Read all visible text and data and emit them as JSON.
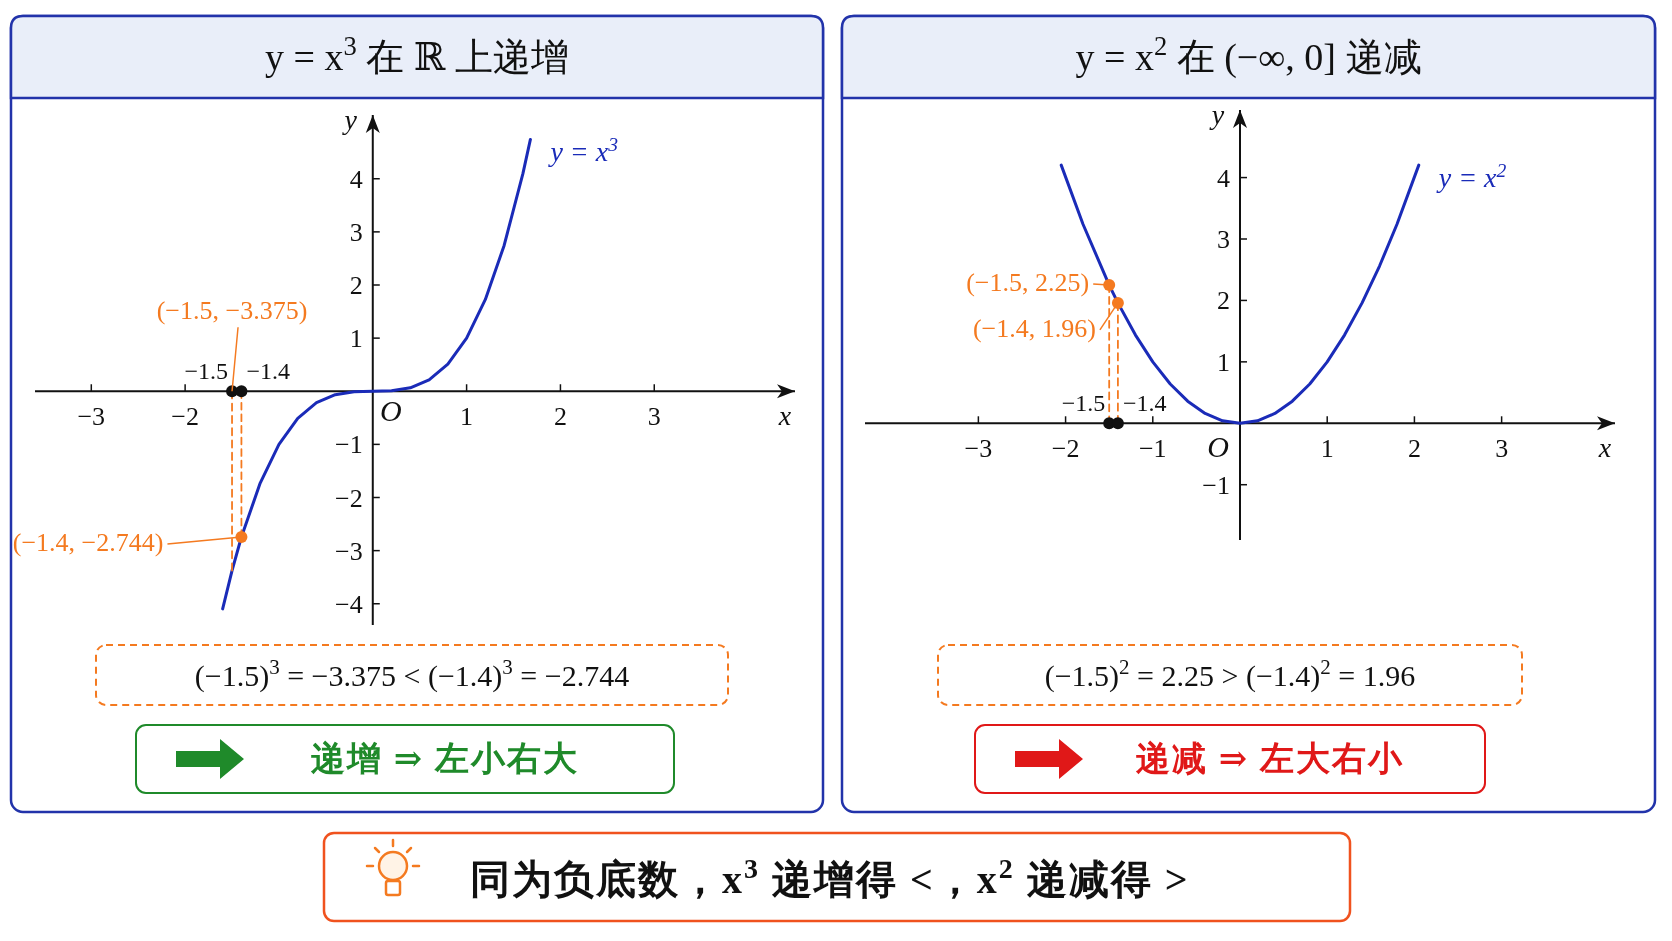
{
  "chart_data": [
    {
      "type": "line",
      "title": "y = x$^{3}$ 在 ℝ 上递增",
      "xlabel": "x",
      "ylabel": "y",
      "xlim": [
        -3.6,
        4.5
      ],
      "ylim": [
        -4.4,
        5.2
      ],
      "xticks": [
        {
          "value": -3,
          "label": "−3"
        },
        {
          "value": -2,
          "label": "−2"
        },
        1,
        2,
        3
      ],
      "yticks": [
        {
          "value": -4,
          "label": "−4"
        },
        {
          "value": -3,
          "label": "−3"
        },
        {
          "value": -2,
          "label": "−2"
        },
        {
          "value": -1,
          "label": "−1"
        },
        1,
        2,
        3,
        4
      ],
      "series": [
        {
          "name": "y = x$^{3}$",
          "color": "#1a2bb8",
          "x": [
            -1.6,
            -1.5,
            -1.4,
            -1.2,
            -1,
            -0.8,
            -0.6,
            -0.4,
            -0.2,
            0,
            0.2,
            0.4,
            0.6,
            0.8,
            1,
            1.2,
            1.4,
            1.6,
            1.68
          ],
          "values": [
            -4.096,
            -3.375,
            -2.744,
            -1.728,
            -1,
            -0.512,
            -0.216,
            -0.064,
            -0.008,
            0,
            0.008,
            0.064,
            0.216,
            0.512,
            1,
            1.728,
            2.744,
            4.096,
            4.74
          ]
        },
        {
          "type": "line",
          "line_style": "dashed",
          "color": "#f47a20",
          "x": [
            -1.5,
            -1.5
          ],
          "values": [
            0,
            -3.375
          ]
        },
        {
          "type": "line",
          "line_style": "dashed",
          "color": "#f47a20",
          "x": [
            -1.4,
            -1.4
          ],
          "values": [
            0,
            -2.744
          ]
        },
        {
          "type": "scatter",
          "color": "#111111",
          "x": [
            -1.5,
            -1.4
          ],
          "values": [
            0,
            0
          ]
        },
        {
          "type": "scatter",
          "color": "#f47a20",
          "x": [
            -1.4
          ],
          "values": [
            -2.744
          ]
        }
      ],
      "annotations": [
        {
          "text": "(−1.5, −3.375)",
          "x": -1.5,
          "y": 0
        },
        {
          "text": "(−1.4, −2.744)",
          "x": -1.4,
          "y": -2.744
        },
        {
          "text": "O",
          "x": 0,
          "y": 0
        },
        {
          "text": "−1.5",
          "x": -1.5,
          "y": 0
        },
        {
          "text": "−1.4",
          "x": -1.4,
          "y": 0
        },
        "(−1.5)$^{3}$ = −3.375 < (−1.4)$^{3}$ = −2.744",
        "递增 ⇒ 左小右大"
      ]
    },
    {
      "type": "line",
      "title": "y = x$^{2}$ 在 (−∞, 0] 递减",
      "xlabel": "x",
      "ylabel": "y",
      "xlim": [
        -4.3,
        4.3
      ],
      "ylim": [
        -1.9,
        5.1
      ],
      "xticks": [
        {
          "value": -3,
          "label": "−3"
        },
        {
          "value": -2,
          "label": "−2"
        },
        {
          "value": -1,
          "label": "−1"
        },
        1,
        2,
        3
      ],
      "yticks": [
        {
          "value": -1,
          "label": "−1"
        },
        1,
        2,
        3,
        4
      ],
      "series": [
        {
          "name": "y = x$^{2}$",
          "color": "#1a2bb8",
          "x": [
            -2.05,
            -1.8,
            -1.5,
            -1.4,
            -1.2,
            -1,
            -0.8,
            -0.6,
            -0.4,
            -0.2,
            0,
            0.2,
            0.4,
            0.6,
            0.8,
            1,
            1.2,
            1.4,
            1.6,
            1.8,
            2.05
          ],
          "values": [
            4.2025,
            3.24,
            2.25,
            1.96,
            1.44,
            1,
            0.64,
            0.36,
            0.16,
            0.04,
            0,
            0.04,
            0.16,
            0.36,
            0.64,
            1,
            1.44,
            1.96,
            2.56,
            3.24,
            4.2025
          ]
        },
        {
          "type": "line",
          "line_style": "dashed",
          "color": "#f47a20",
          "x": [
            -1.5,
            -1.5
          ],
          "values": [
            0,
            2.25
          ]
        },
        {
          "type": "line",
          "line_style": "dashed",
          "color": "#f47a20",
          "x": [
            -1.4,
            -1.4
          ],
          "values": [
            0,
            1.96
          ]
        },
        {
          "type": "scatter",
          "color": "#111111",
          "x": [
            -1.5,
            -1.4
          ],
          "values": [
            0,
            0
          ]
        },
        {
          "type": "scatter",
          "color": "#f47a20",
          "x": [
            -1.5,
            -1.4
          ],
          "values": [
            2.25,
            1.96
          ]
        }
      ],
      "annotations": [
        {
          "text": "(−1.5, 2.25)",
          "x": -1.5,
          "y": 2.25
        },
        {
          "text": "(−1.4, 1.96)",
          "x": -1.4,
          "y": 1.96
        },
        {
          "text": "O",
          "x": 0,
          "y": 0
        },
        {
          "text": "−1.5",
          "x": -1.5,
          "y": 0
        },
        {
          "text": "−1.4",
          "x": -1.4,
          "y": 0
        },
        "(−1.5)$^{2}$ = 2.25 > (−1.4)$^{2}$ = 1.96",
        "递减 ⇒ 左大右小"
      ]
    },
    {
      "type": "other",
      "annotations": [
        "同为负底数，x$^{3}$ 递增得 <，x$^{2}$ 递减得 >"
      ]
    }
  ]
}
